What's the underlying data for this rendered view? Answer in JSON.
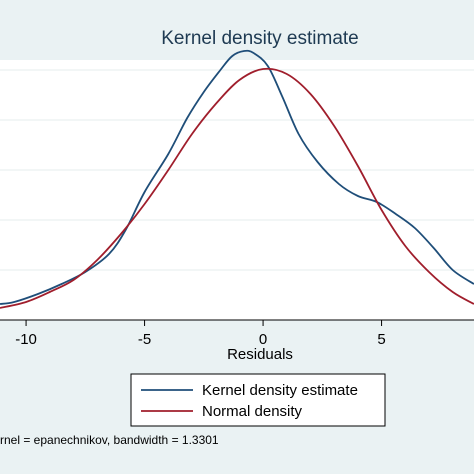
{
  "chart_data": {
    "type": "line",
    "title": "Kernel density estimate",
    "xlabel": "Residuals",
    "ylabel": "",
    "xlim": [
      -11.1,
      8.9
    ],
    "ylim": [
      0,
      0.13
    ],
    "x_ticks": [
      -10,
      -5,
      0,
      5
    ],
    "grid": "horizontal",
    "legend_position": "bottom",
    "series": [
      {
        "name": "Kernel density estimate",
        "color": "#1f4e79",
        "x": [
          -11.1,
          -10.5,
          -9.5,
          -8.5,
          -7.5,
          -6.5,
          -5.8,
          -5.0,
          -4.0,
          -3.2,
          -2.5,
          -1.8,
          -1.3,
          -0.8,
          -0.4,
          0.2,
          0.8,
          1.5,
          2.3,
          3.2,
          4.0,
          4.8,
          5.6,
          6.4,
          7.2,
          8.0,
          8.9
        ],
        "y": [
          0.008,
          0.009,
          0.013,
          0.018,
          0.024,
          0.033,
          0.045,
          0.064,
          0.083,
          0.101,
          0.114,
          0.125,
          0.132,
          0.1345,
          0.1335,
          0.127,
          0.112,
          0.093,
          0.079,
          0.068,
          0.062,
          0.059,
          0.053,
          0.046,
          0.036,
          0.025,
          0.018
        ]
      },
      {
        "name": "Normal density",
        "color": "#a01e2c",
        "x": [
          -11.1,
          -10.0,
          -9.0,
          -8.0,
          -7.0,
          -6.0,
          -5.0,
          -4.0,
          -3.0,
          -2.0,
          -1.0,
          0.0,
          1.0,
          2.0,
          3.0,
          4.0,
          5.0,
          6.0,
          7.0,
          8.0,
          8.9
        ],
        "y": [
          0.006,
          0.009,
          0.014,
          0.02,
          0.03,
          0.043,
          0.058,
          0.075,
          0.093,
          0.108,
          0.12,
          0.1255,
          0.123,
          0.113,
          0.097,
          0.077,
          0.055,
          0.037,
          0.024,
          0.014,
          0.008
        ]
      }
    ],
    "note": "rnel = epanechnikov, bandwidth = 1.3301"
  }
}
